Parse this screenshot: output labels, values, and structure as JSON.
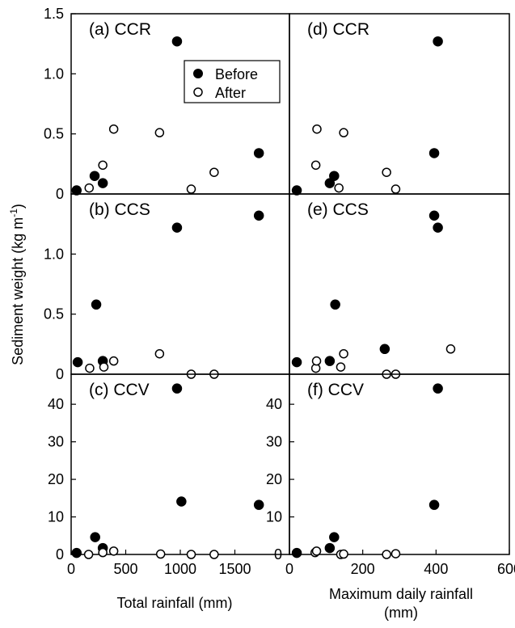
{
  "figure": {
    "ylabel_main": "Sediment weight (kg m",
    "ylabel_sup": "-1",
    "ylabel_close": ")",
    "xlabel_left": "Total rainfall (mm)",
    "xlabel_right_line1": "Maximum daily rainfall",
    "xlabel_right_line2": "(mm)",
    "legend": {
      "before": "Before",
      "after": "After"
    }
  },
  "chart_data": [
    {
      "type": "scatter",
      "panel": "(a) CCR",
      "label": "(a) CCR",
      "xlabel": "",
      "ylabel": "",
      "xlim": [
        0,
        2000
      ],
      "ylim": [
        0,
        1.5
      ],
      "xticks": [],
      "yticks": [
        0,
        0.5,
        1.0,
        1.5
      ],
      "ytick_labels": [
        "0",
        "0.5",
        "1.0",
        "1.5"
      ],
      "legend": "inside",
      "series": [
        {
          "name": "Before",
          "x": [
            50,
            215,
            290,
            970,
            1720
          ],
          "y": [
            0.03,
            0.15,
            0.09,
            1.27,
            0.34
          ]
        },
        {
          "name": "After",
          "x": [
            165,
            290,
            390,
            810,
            1100,
            1310
          ],
          "y": [
            0.05,
            0.24,
            0.54,
            0.51,
            0.04,
            0.18
          ]
        }
      ]
    },
    {
      "type": "scatter",
      "panel": "(b) CCS",
      "label": "(b) CCS",
      "xlabel": "",
      "ylabel": "",
      "xlim": [
        0,
        2000
      ],
      "ylim": [
        0,
        1.5
      ],
      "xticks": [],
      "yticks": [
        0,
        0.5,
        1.0
      ],
      "ytick_labels": [
        "0",
        "0.5",
        "1.0"
      ],
      "series": [
        {
          "name": "Before",
          "x": [
            60,
            230,
            290,
            970,
            1720
          ],
          "y": [
            0.1,
            0.58,
            0.11,
            1.22,
            1.32
          ]
        },
        {
          "name": "After",
          "x": [
            170,
            300,
            390,
            810,
            1100,
            1310
          ],
          "y": [
            0.05,
            0.06,
            0.11,
            0.17,
            0.0,
            0.0
          ]
        }
      ]
    },
    {
      "type": "scatter",
      "panel": "(c) CCV",
      "label": "(c) CCV",
      "xlabel": "Total rainfall (mm)",
      "ylabel": "",
      "xlim": [
        0,
        2000
      ],
      "ylim": [
        0,
        48
      ],
      "xticks": [
        0,
        500,
        1000,
        1500
      ],
      "xtick_labels": [
        "0",
        "500",
        "1000",
        "1500"
      ],
      "yticks": [
        0,
        10,
        20,
        30,
        40
      ],
      "ytick_labels": [
        "0",
        "10",
        "20",
        "30",
        "40"
      ],
      "series": [
        {
          "name": "Before",
          "x": [
            50,
            220,
            290,
            970,
            1010,
            1720
          ],
          "y": [
            0.4,
            4.6,
            1.7,
            44.2,
            14.1,
            13.2
          ]
        },
        {
          "name": "After",
          "x": [
            160,
            290,
            390,
            820,
            1100,
            1310
          ],
          "y": [
            0.0,
            0.5,
            0.9,
            0.1,
            0.0,
            0.0
          ]
        }
      ]
    },
    {
      "type": "scatter",
      "panel": "(d) CCR",
      "label": "(d) CCR",
      "xlabel": "",
      "ylabel": "",
      "xlim": [
        0,
        600
      ],
      "ylim": [
        0,
        1.5
      ],
      "xticks": [],
      "yticks": [],
      "series": [
        {
          "name": "Before",
          "x": [
            20,
            110,
            122,
            395,
            405
          ],
          "y": [
            0.03,
            0.09,
            0.15,
            0.34,
            1.27
          ]
        },
        {
          "name": "After",
          "x": [
            72,
            75,
            135,
            148,
            265,
            290
          ],
          "y": [
            0.24,
            0.54,
            0.05,
            0.51,
            0.18,
            0.04
          ]
        }
      ]
    },
    {
      "type": "scatter",
      "panel": "(e) CCS",
      "label": "(e) CCS",
      "xlabel": "",
      "ylabel": "",
      "xlim": [
        0,
        600
      ],
      "ylim": [
        0,
        1.5
      ],
      "xticks": [],
      "yticks": [],
      "series": [
        {
          "name": "Before",
          "x": [
            20,
            110,
            125,
            260,
            395,
            405
          ],
          "y": [
            0.1,
            0.11,
            0.58,
            0.21,
            1.32,
            1.22
          ]
        },
        {
          "name": "After",
          "x": [
            72,
            74,
            140,
            148,
            265,
            290,
            440
          ],
          "y": [
            0.05,
            0.11,
            0.06,
            0.17,
            0.0,
            0.0,
            0.21
          ]
        }
      ]
    },
    {
      "type": "scatter",
      "panel": "(f) CCV",
      "label": "(f) CCV",
      "xlabel": "Maximum daily rainfall (mm)",
      "ylabel": "",
      "xlim": [
        0,
        600
      ],
      "ylim": [
        0,
        48
      ],
      "xticks": [
        0,
        200,
        400,
        600
      ],
      "xtick_labels": [
        "0",
        "200",
        "400",
        "600"
      ],
      "yticks": [
        0,
        10,
        20,
        30,
        40
      ],
      "ytick_labels": [
        "0",
        "10",
        "20",
        "30",
        "40"
      ],
      "series": [
        {
          "name": "Before",
          "x": [
            20,
            110,
            122,
            395,
            405
          ],
          "y": [
            0.4,
            1.7,
            4.6,
            13.2,
            44.2
          ]
        },
        {
          "name": "After",
          "x": [
            70,
            74,
            140,
            148,
            265,
            290
          ],
          "y": [
            0.5,
            0.9,
            0.0,
            0.1,
            0.0,
            0.2
          ]
        }
      ]
    }
  ]
}
